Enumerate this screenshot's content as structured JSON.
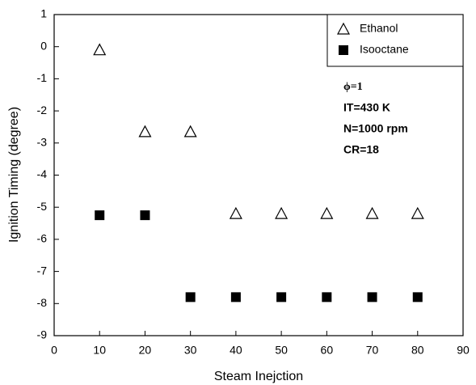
{
  "chart_data": {
    "type": "scatter",
    "x_label": "Steam Inejction",
    "y_label": "Ignition Timing (degree)",
    "xlim": [
      0,
      90
    ],
    "xticks": [
      0,
      10,
      20,
      30,
      40,
      50,
      60,
      70,
      80,
      90
    ],
    "ylim": [
      -9,
      1
    ],
    "yticks": [
      -9,
      -8,
      -7,
      -6,
      -5,
      -4,
      -3,
      -2,
      -1,
      0,
      1
    ],
    "legend": "upper right",
    "series": [
      {
        "name": "Ethanol",
        "color": "#000000",
        "marker": "open-triangle",
        "x": [
          10,
          20,
          30,
          40,
          50,
          60,
          70,
          80
        ],
        "values": [
          -0.1,
          -2.65,
          -2.65,
          -5.2,
          -5.2,
          -5.2,
          -5.2,
          -5.2
        ]
      },
      {
        "name": "Isooctane",
        "color": "#000000",
        "marker": "filled-square",
        "x": [
          10,
          20,
          30,
          40,
          50,
          60,
          70,
          80
        ],
        "values": [
          -5.25,
          -5.25,
          -7.8,
          -7.8,
          -7.8,
          -7.8,
          -7.8,
          -7.8
        ]
      }
    ],
    "annotations": [
      "ϕ=1",
      "IT=430 K",
      "N=1000 rpm",
      "CR=18"
    ]
  }
}
